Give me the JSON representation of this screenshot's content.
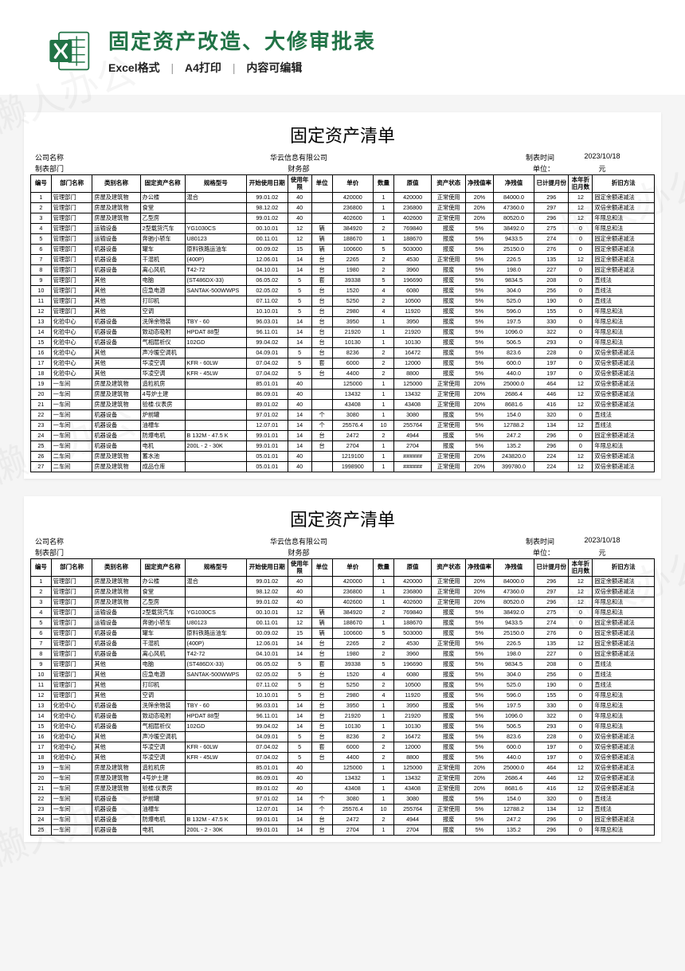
{
  "header": {
    "title": "固定资产改造、大修审批表",
    "meta": [
      "Excel格式",
      "A4打印",
      "内容可编辑"
    ]
  },
  "watermark": "懒人办公",
  "sheet": {
    "title": "固定资产清单",
    "company_lbl": "公司名称",
    "company": "华云信息有限公司",
    "time_lbl": "制表时间",
    "time": "2023/10/18",
    "dept_lbl": "制表部门",
    "dept": "财务部",
    "unit_lbl": "单位：",
    "unit": "元",
    "columns": [
      "编号",
      "部门名称",
      "类别名称",
      "固定资产名称",
      "规格型号",
      "开始使用日期",
      "使用年限",
      "单位",
      "单价",
      "数量",
      "原值",
      "资产状态",
      "净残值率",
      "净残值",
      "已计提月份",
      "本年折旧月数",
      "折旧方法"
    ],
    "rows": [
      [
        "1",
        "管理部门",
        "房屋及建筑物",
        "办公楼",
        "混合",
        "99.01.02",
        "40",
        "",
        "420000",
        "1",
        "420000",
        "正常使用",
        "20%",
        "84000.0",
        "296",
        "12",
        "固定余额递减法"
      ],
      [
        "2",
        "管理部门",
        "房屋及建筑物",
        "食堂",
        "",
        "98.12.02",
        "40",
        "",
        "236800",
        "1",
        "236800",
        "正常使用",
        "20%",
        "47360.0",
        "297",
        "12",
        "双倍余额递减法"
      ],
      [
        "3",
        "管理部门",
        "房屋及建筑物",
        "乙型房",
        "",
        "99.01.02",
        "40",
        "",
        "402600",
        "1",
        "402600",
        "正常使用",
        "20%",
        "80520.0",
        "296",
        "12",
        "年限总和法"
      ],
      [
        "4",
        "管理部门",
        "运输设备",
        "2型载货汽车",
        "YG1030CS",
        "00.10.01",
        "12",
        "辆",
        "384920",
        "2",
        "769840",
        "报废",
        "5%",
        "38492.0",
        "275",
        "0",
        "年限总和法"
      ],
      [
        "5",
        "管理部门",
        "运输设备",
        "奔驰小轿车",
        "U80123",
        "00.11.01",
        "12",
        "辆",
        "188670",
        "1",
        "188670",
        "报废",
        "5%",
        "9433.5",
        "274",
        "0",
        "固定余额递减法"
      ],
      [
        "6",
        "管理部门",
        "机器设备",
        "罐车",
        "原料铁路运油车",
        "00.09.02",
        "15",
        "辆",
        "100600",
        "5",
        "503000",
        "报废",
        "5%",
        "25150.0",
        "276",
        "0",
        "固定余额递减法"
      ],
      [
        "7",
        "管理部门",
        "机器设备",
        "干湿机",
        "(400P)",
        "12.06.01",
        "14",
        "台",
        "2265",
        "2",
        "4530",
        "正常使用",
        "5%",
        "226.5",
        "135",
        "12",
        "固定余额递减法"
      ],
      [
        "8",
        "管理部门",
        "机器设备",
        "离心风机",
        "T42-72",
        "04.10.01",
        "14",
        "台",
        "1980",
        "2",
        "3960",
        "报废",
        "5%",
        "198.0",
        "227",
        "0",
        "固定余额递减法"
      ],
      [
        "9",
        "管理部门",
        "其他",
        "电脑",
        "(ST486DX-33)",
        "06.05.02",
        "5",
        "套",
        "39338",
        "5",
        "196690",
        "报废",
        "5%",
        "9834.5",
        "208",
        "0",
        "直线法"
      ],
      [
        "10",
        "管理部门",
        "其他",
        "应急电源",
        "SANTAK-500WWPS",
        "02.05.02",
        "5",
        "台",
        "1520",
        "4",
        "6080",
        "报废",
        "5%",
        "304.0",
        "256",
        "0",
        "直线法"
      ],
      [
        "11",
        "管理部门",
        "其他",
        "打印机",
        "",
        "07.11.02",
        "5",
        "台",
        "5250",
        "2",
        "10500",
        "报废",
        "5%",
        "525.0",
        "190",
        "0",
        "直线法"
      ],
      [
        "12",
        "管理部门",
        "其他",
        "空调",
        "",
        "10.10.01",
        "5",
        "台",
        "2980",
        "4",
        "11920",
        "报废",
        "5%",
        "596.0",
        "155",
        "0",
        "年限总和法"
      ],
      [
        "13",
        "化验中心",
        "机器设备",
        "洗筛余物装",
        "TBY - 60",
        "96.03.01",
        "14",
        "台",
        "3950",
        "1",
        "3950",
        "报废",
        "5%",
        "197.5",
        "330",
        "0",
        "年限总和法"
      ],
      [
        "14",
        "化验中心",
        "机器设备",
        "致动态吸附",
        "HPDAT  88型",
        "96.11.01",
        "14",
        "台",
        "21920",
        "1",
        "21920",
        "报废",
        "5%",
        "1096.0",
        "322",
        "0",
        "年限总和法"
      ],
      [
        "15",
        "化验中心",
        "机器设备",
        "气相层析仪",
        "102GD",
        "99.04.02",
        "14",
        "台",
        "10130",
        "1",
        "10130",
        "报废",
        "5%",
        "506.5",
        "293",
        "0",
        "年限总和法"
      ],
      [
        "16",
        "化验中心",
        "其他",
        "声冷暖空调机",
        "",
        "04.09.01",
        "5",
        "台",
        "8236",
        "2",
        "16472",
        "报废",
        "5%",
        "823.6",
        "228",
        "0",
        "双倍余额递减法"
      ],
      [
        "17",
        "化验中心",
        "其他",
        "华凌空调",
        "KFR - 60LW",
        "07.04.02",
        "5",
        "套",
        "6000",
        "2",
        "12000",
        "报废",
        "5%",
        "600.0",
        "197",
        "0",
        "双倍余额递减法"
      ],
      [
        "18",
        "化验中心",
        "其他",
        "华凌空调",
        "KFR - 45LW",
        "07.04.02",
        "5",
        "台",
        "4400",
        "2",
        "8800",
        "报废",
        "5%",
        "440.0",
        "197",
        "0",
        "双倍余额递减法"
      ],
      [
        "19",
        "一车间",
        "房屋及建筑物",
        "造粒机房",
        "",
        "85.01.01",
        "40",
        "",
        "125000",
        "1",
        "125000",
        "正常使用",
        "20%",
        "25000.0",
        "464",
        "12",
        "双倍余额递减法"
      ],
      [
        "20",
        "一车间",
        "房屋及建筑物",
        "4号炉土建",
        "",
        "86.09.01",
        "40",
        "",
        "13432",
        "1",
        "13432",
        "正常使用",
        "20%",
        "2686.4",
        "446",
        "12",
        "双倍余额递减法"
      ],
      [
        "21",
        "一车间",
        "房屋及建筑物",
        "验楼.仪表房",
        "",
        "89.01.02",
        "40",
        "",
        "43408",
        "1",
        "43408",
        "正常使用",
        "20%",
        "8681.6",
        "416",
        "12",
        "双倍余额递减法"
      ],
      [
        "22",
        "一车间",
        "机器设备",
        "炉前罐",
        "",
        "97.01.02",
        "14",
        "个",
        "3080",
        "1",
        "3080",
        "报废",
        "5%",
        "154.0",
        "320",
        "0",
        "直线法"
      ],
      [
        "23",
        "一车间",
        "机器设备",
        "油槽车",
        "",
        "12.07.01",
        "14",
        "个",
        "25576.4",
        "10",
        "255764",
        "正常使用",
        "5%",
        "12788.2",
        "134",
        "12",
        "直线法"
      ],
      [
        "24",
        "一车间",
        "机器设备",
        "防爆电机",
        "B 132M - 47.5 K",
        "99.01.01",
        "14",
        "台",
        "2472",
        "2",
        "4944",
        "报废",
        "5%",
        "247.2",
        "296",
        "0",
        "固定余额递减法"
      ],
      [
        "25",
        "一车间",
        "机器设备",
        "电机",
        "200L - 2 - 30K",
        "99.01.01",
        "14",
        "台",
        "2704",
        "1",
        "2704",
        "报废",
        "5%",
        "135.2",
        "296",
        "0",
        "年限总和法"
      ],
      [
        "26",
        "二车间",
        "房屋及建筑物",
        "蓄水池",
        "",
        "05.01.01",
        "40",
        "",
        "1219100",
        "1",
        "######",
        "正常使用",
        "20%",
        "243820.0",
        "224",
        "12",
        "双倍余额递减法"
      ],
      [
        "27",
        "二车间",
        "房屋及建筑物",
        "成品仓库",
        "",
        "05.01.01",
        "40",
        "",
        "1998900",
        "1",
        "######",
        "正常使用",
        "20%",
        "399780.0",
        "224",
        "12",
        "双倍余额递减法"
      ]
    ],
    "rows2_limit": 25
  }
}
